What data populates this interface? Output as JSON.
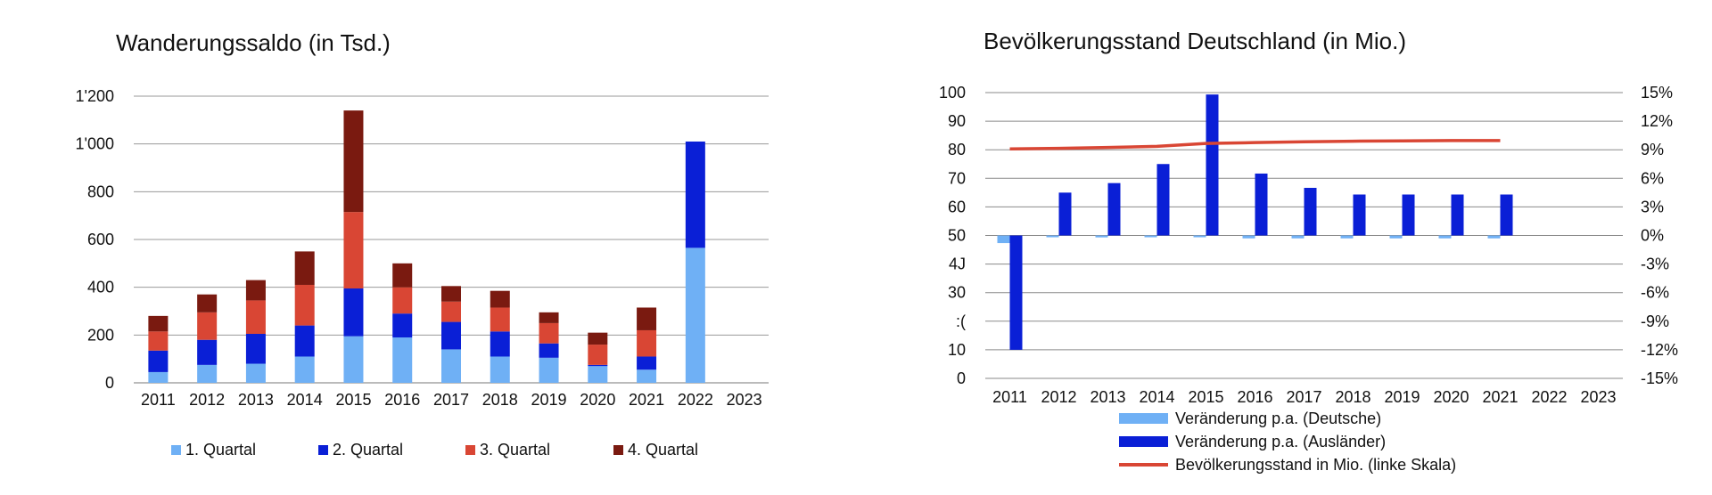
{
  "chart_data": [
    {
      "type": "bar",
      "stacked": true,
      "title": "Wanderungssaldo (in Tsd.)",
      "categories": [
        "2011",
        "2012",
        "2013",
        "2014",
        "2015",
        "2016",
        "2017",
        "2018",
        "2019",
        "2020",
        "2021",
        "2022",
        "2023"
      ],
      "ylim": [
        0,
        1200
      ],
      "yticks": [
        "0",
        "200",
        "400",
        "600",
        "800",
        "1'000",
        "1'200"
      ],
      "grid": true,
      "legend_position": "bottom",
      "colors": [
        "#6fb0f5",
        "#0a1fd6",
        "#d94634",
        "#7a1a10"
      ],
      "series": [
        {
          "name": "1. Quartal",
          "values": [
            45,
            75,
            80,
            110,
            195,
            190,
            140,
            110,
            105,
            70,
            55,
            565,
            null
          ]
        },
        {
          "name": "2. Quartal",
          "values": [
            90,
            105,
            125,
            130,
            200,
            100,
            115,
            105,
            60,
            5,
            55,
            445,
            null
          ]
        },
        {
          "name": "3. Quartal",
          "values": [
            80,
            115,
            140,
            170,
            320,
            110,
            85,
            100,
            85,
            85,
            110,
            null,
            null
          ]
        },
        {
          "name": "4. Quartal",
          "values": [
            65,
            75,
            85,
            140,
            425,
            100,
            65,
            70,
            45,
            50,
            95,
            null,
            null
          ]
        }
      ]
    },
    {
      "type": "bar",
      "title": "Bevölkerungsstand Deutschland (in Mio.)",
      "categories": [
        "2011",
        "2012",
        "2013",
        "2014",
        "2015",
        "2016",
        "2017",
        "2018",
        "2019",
        "2020",
        "2021",
        "2022",
        "2023"
      ],
      "ylim": [
        0,
        100
      ],
      "yticks": [
        "0",
        "10",
        "20",
        "30",
        "40",
        "50",
        "60",
        "70",
        "80",
        "90",
        "100"
      ],
      "y2lim": [
        -15,
        15
      ],
      "y2ticks": [
        "-15%",
        "-12%",
        "-9%",
        "-6%",
        "-3%",
        "0%",
        "3%",
        "6%",
        "9%",
        "12%",
        "15%"
      ],
      "grid": true,
      "legend_position": "bottom",
      "colors": [
        "#6fb0f5",
        "#0a1fd6",
        "#d94634"
      ],
      "series": [
        {
          "name": "Veränderung p.a. (Deutsche)",
          "axis": "right",
          "values": [
            -0.8,
            -0.1,
            -0.2,
            -0.1,
            -0.1,
            -0.3,
            -0.3,
            -0.3,
            -0.3,
            -0.3,
            -0.3,
            null,
            null
          ]
        },
        {
          "name": "Veränderung p.a. (Ausländer)",
          "axis": "right",
          "values": [
            -12,
            4.5,
            5.5,
            7.5,
            14.8,
            6.5,
            5,
            4.3,
            4.3,
            4.3,
            4.3,
            null,
            null
          ]
        },
        {
          "name": "Bevölkerungsstand in Mio. (linke Skala)",
          "axis": "left",
          "type": "line",
          "values": [
            80.3,
            80.5,
            80.8,
            81.2,
            82.2,
            82.5,
            82.8,
            83.0,
            83.1,
            83.2,
            83.2,
            null,
            null
          ]
        }
      ],
      "obscured_tick_labels": {
        "40": "4J",
        "20": " :("
      }
    }
  ]
}
